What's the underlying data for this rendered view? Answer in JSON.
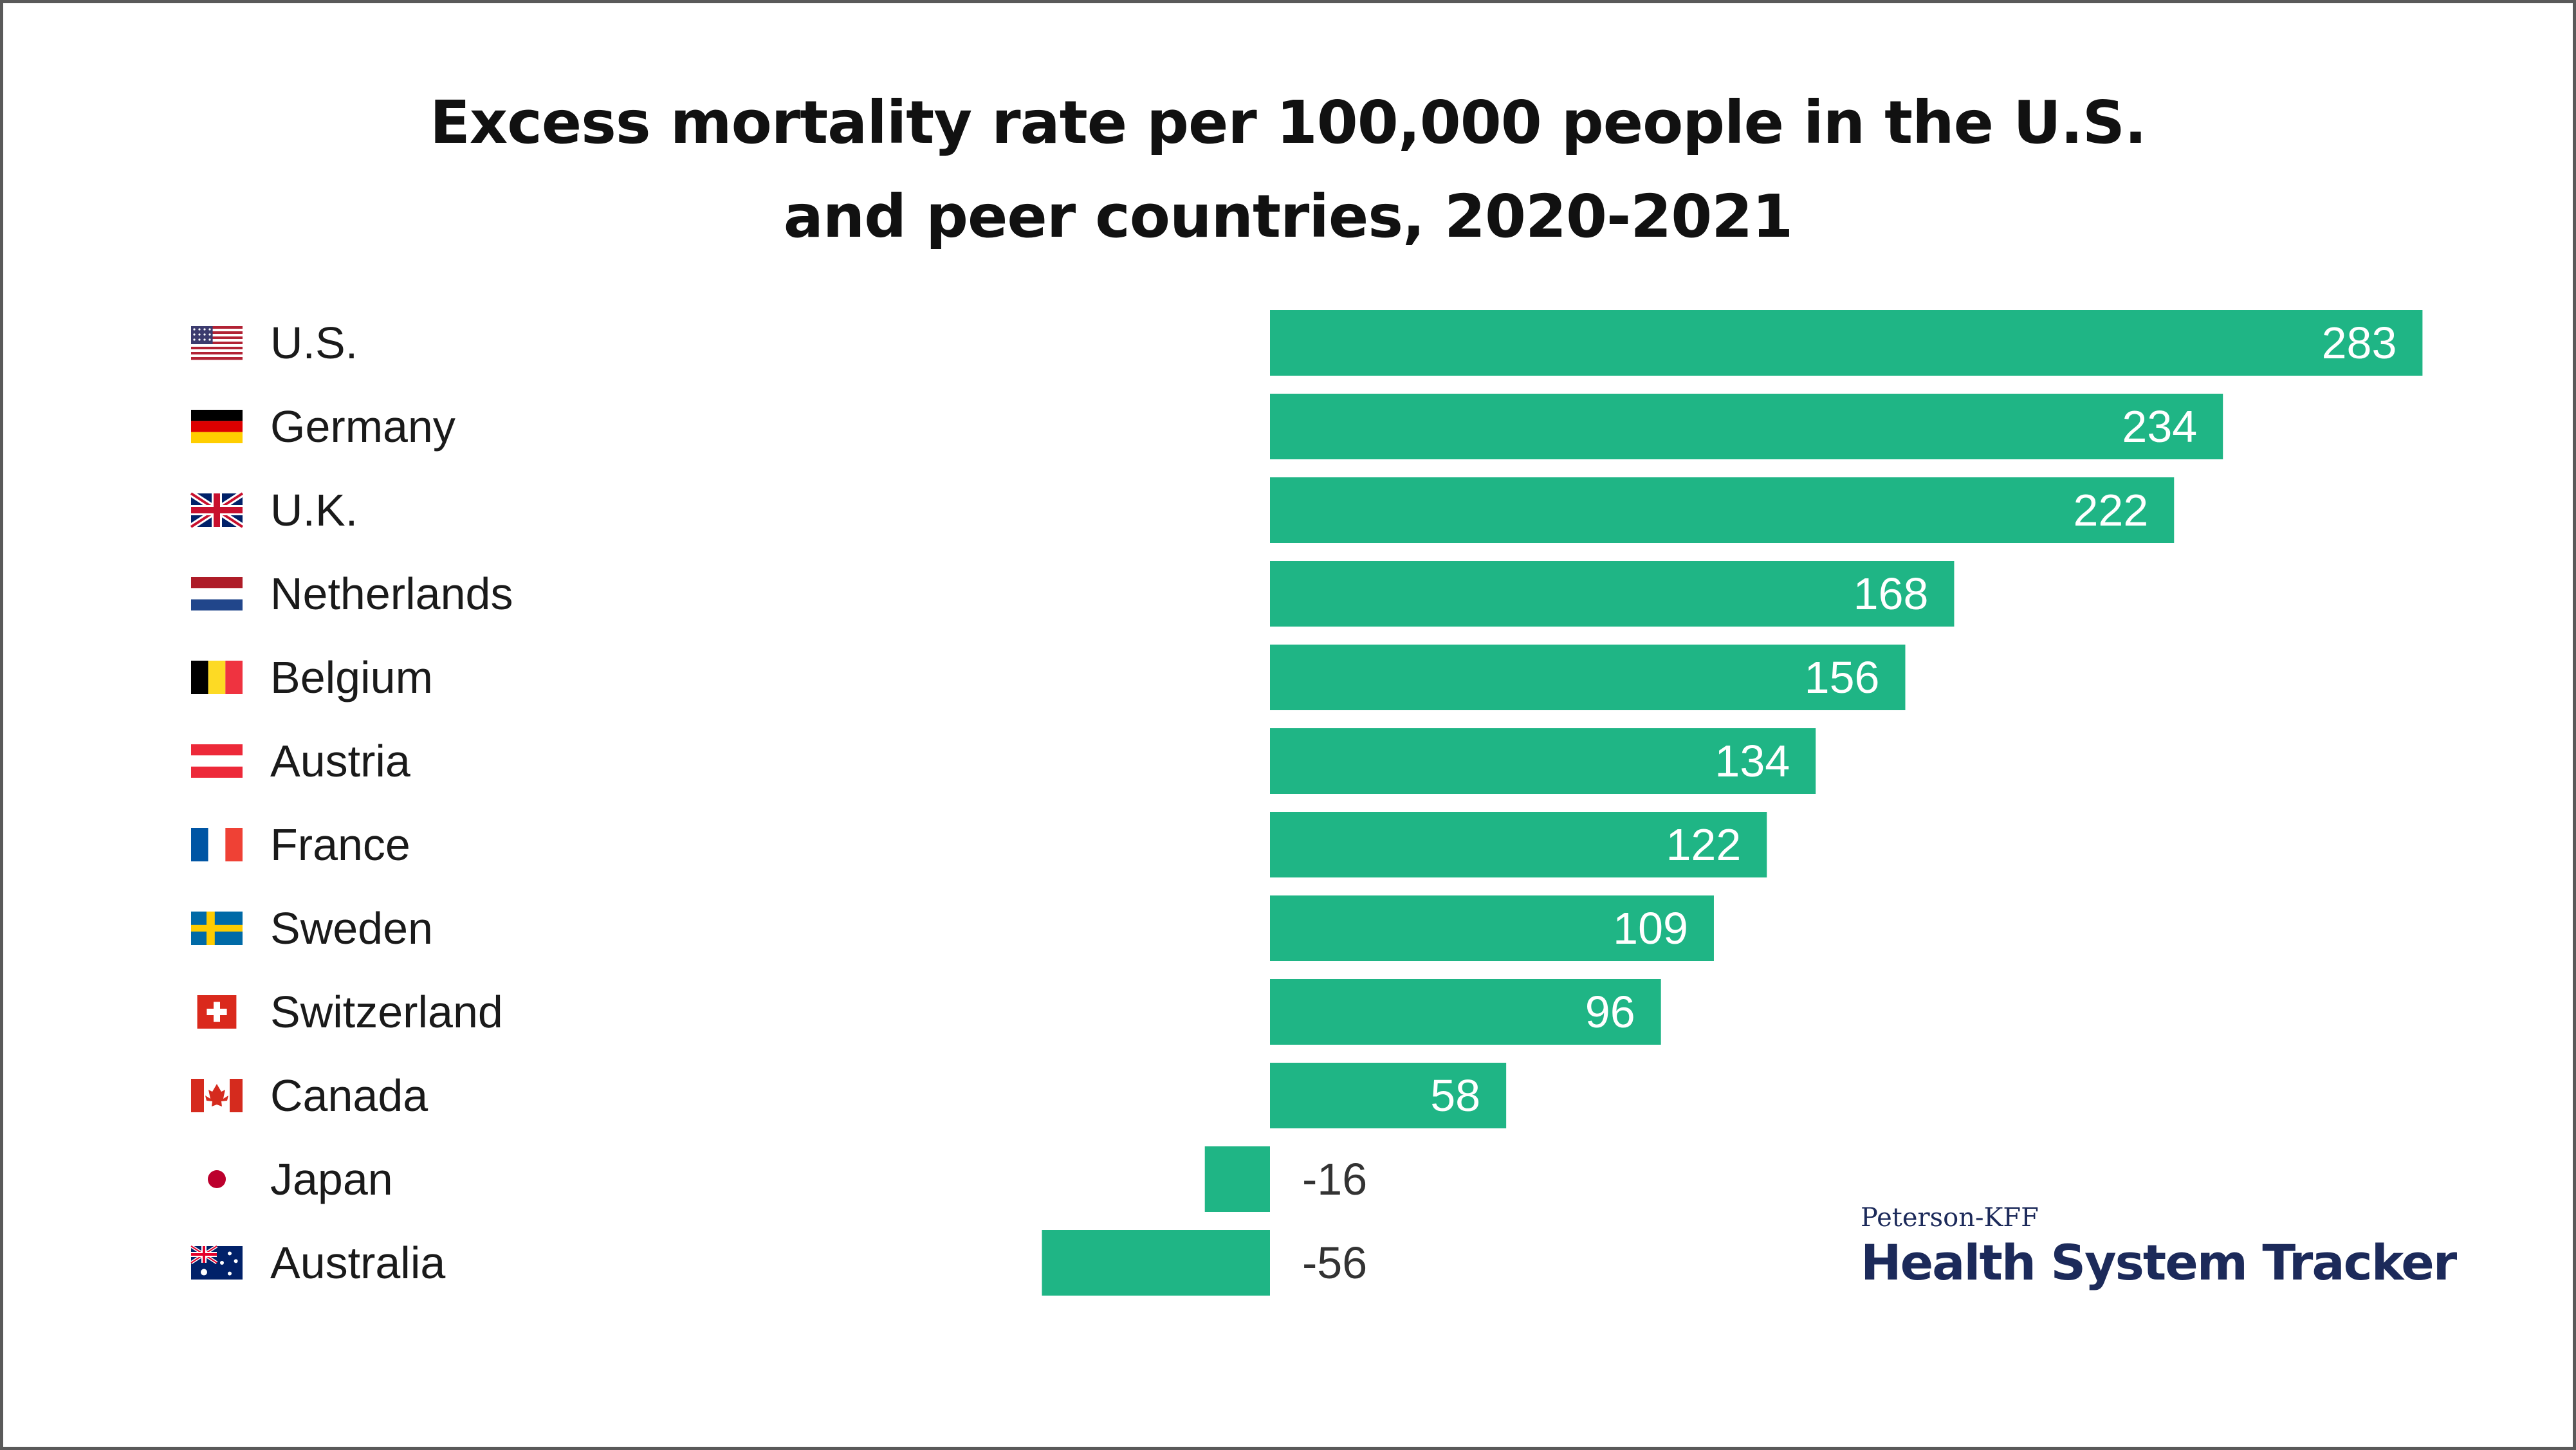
{
  "chart_data": {
    "type": "bar",
    "orientation": "horizontal",
    "title_lines": [
      "Excess mortality rate per 100,000 people in the U.S.",
      "and peer countries, 2020-2021"
    ],
    "categories": [
      "U.S.",
      "Germany",
      "U.K.",
      "Netherlands",
      "Belgium",
      "Austria",
      "France",
      "Sweden",
      "Switzerland",
      "Canada",
      "Japan",
      "Australia"
    ],
    "flags": [
      "us-flag",
      "germany-flag",
      "uk-flag",
      "netherlands-flag",
      "belgium-flag",
      "austria-flag",
      "france-flag",
      "sweden-flag",
      "switzerland-flag",
      "canada-flag",
      "japan-flag",
      "australia-flag"
    ],
    "values": [
      283,
      234,
      222,
      168,
      156,
      134,
      122,
      109,
      96,
      58,
      -16,
      -56
    ],
    "value_labels": [
      "283",
      "234",
      "222",
      "168",
      "156",
      "134",
      "122",
      "109",
      "96",
      "58",
      "-16",
      "-56"
    ],
    "bar_color": "#1fb585",
    "positive_label_color": "#ffffff",
    "negative_label_color": "#333333"
  },
  "logo": {
    "top_text": "Peterson-KFF",
    "bottom_text": "Health System Tracker",
    "color": "#1c2a5a"
  }
}
